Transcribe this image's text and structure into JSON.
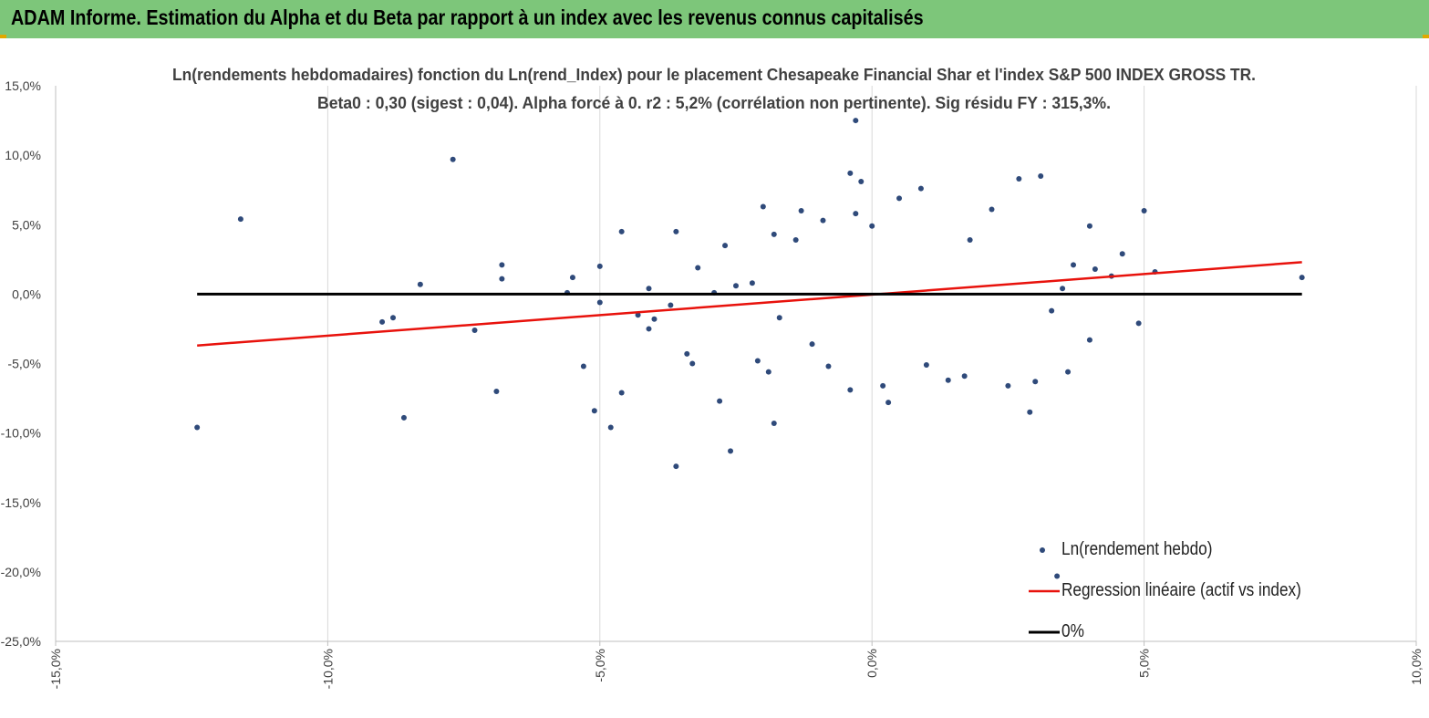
{
  "header": {
    "title": "ADAM Informe. Estimation du Alpha et du Beta par rapport à un index avec les revenus connus capitalisés"
  },
  "colors": {
    "header_bg": "#7dc67a",
    "points": "#2f4a7a",
    "regression": "#e8120c",
    "zero_line": "#000000",
    "grid": "#d9d9d9"
  },
  "chart_data": {
    "type": "scatter",
    "title": "Ln(rendements hebdomadaires) fonction du Ln(rend_Index) pour le placement Chesapeake Financial Shar et l'index S&P 500 INDEX GROSS TR.",
    "subtitle": "Beta0 : 0,30 (sigest : 0,04).  Alpha forcé à 0. r2 : 5,2% (corrélation non pertinente). Sig résidu FY : 315,3%.",
    "xlim": [
      -0.15,
      0.1
    ],
    "ylim": [
      -0.25,
      0.15
    ],
    "x_ticks": [
      -0.15,
      -0.1,
      -0.05,
      0.0,
      0.05,
      0.1
    ],
    "x_tick_labels": [
      "-15,0%",
      "-10,0%",
      "-5,0%",
      "0,0%",
      "5,0%",
      "10,0%"
    ],
    "y_ticks": [
      0.15,
      0.1,
      0.05,
      0.0,
      -0.05,
      -0.1,
      -0.15,
      -0.2,
      -0.25
    ],
    "y_tick_labels": [
      "15,0%",
      "10,0%",
      "5,0%",
      "0,0%",
      "-5,0%",
      "-10,0%",
      "-15,0%",
      "-20,0%",
      "-25,0%"
    ],
    "grid": "vertical",
    "legend_position": "bottom-right",
    "series": [
      {
        "name": "Ln(rendement hebdo)",
        "kind": "points",
        "points": [
          [
            -0.124,
            -0.096
          ],
          [
            -0.116,
            0.054
          ],
          [
            -0.077,
            0.097
          ],
          [
            -0.083,
            0.007
          ],
          [
            -0.086,
            -0.089
          ],
          [
            -0.09,
            -0.02
          ],
          [
            -0.088,
            -0.017
          ],
          [
            -0.073,
            -0.026
          ],
          [
            -0.069,
            -0.07
          ],
          [
            -0.068,
            0.021
          ],
          [
            -0.068,
            0.011
          ],
          [
            -0.055,
            0.012
          ],
          [
            -0.056,
            0.001
          ],
          [
            -0.053,
            -0.052
          ],
          [
            -0.051,
            -0.084
          ],
          [
            -0.05,
            -0.006
          ],
          [
            -0.05,
            0.02
          ],
          [
            -0.048,
            -0.096
          ],
          [
            -0.046,
            0.045
          ],
          [
            -0.046,
            -0.071
          ],
          [
            -0.043,
            -0.015
          ],
          [
            -0.041,
            0.004
          ],
          [
            -0.041,
            -0.025
          ],
          [
            -0.04,
            -0.018
          ],
          [
            -0.037,
            -0.008
          ],
          [
            -0.036,
            -0.124
          ],
          [
            -0.036,
            0.045
          ],
          [
            -0.034,
            -0.043
          ],
          [
            -0.033,
            -0.05
          ],
          [
            -0.032,
            0.019
          ],
          [
            -0.026,
            -0.113
          ],
          [
            -0.028,
            -0.077
          ],
          [
            -0.027,
            0.035
          ],
          [
            -0.022,
            0.008
          ],
          [
            -0.021,
            -0.048
          ],
          [
            -0.02,
            0.063
          ],
          [
            -0.018,
            -0.093
          ],
          [
            -0.019,
            -0.056
          ],
          [
            -0.018,
            0.043
          ],
          [
            -0.014,
            0.039
          ],
          [
            -0.013,
            0.06
          ],
          [
            -0.009,
            0.053
          ],
          [
            -0.004,
            0.087
          ],
          [
            -0.003,
            0.125
          ],
          [
            -0.002,
            0.081
          ],
          [
            -0.003,
            0.058
          ],
          [
            -0.004,
            -0.069
          ],
          [
            0.0,
            0.049
          ],
          [
            -0.008,
            -0.052
          ],
          [
            0.002,
            -0.066
          ],
          [
            0.003,
            -0.078
          ],
          [
            0.005,
            0.069
          ],
          [
            0.009,
            0.076
          ],
          [
            0.01,
            -0.051
          ],
          [
            0.014,
            -0.062
          ],
          [
            0.018,
            0.039
          ],
          [
            0.022,
            0.061
          ],
          [
            0.025,
            -0.066
          ],
          [
            0.027,
            0.083
          ],
          [
            0.029,
            -0.085
          ],
          [
            0.03,
            -0.063
          ],
          [
            0.031,
            0.085
          ],
          [
            0.034,
            -0.203
          ],
          [
            0.036,
            -0.056
          ],
          [
            0.04,
            -0.033
          ],
          [
            0.04,
            0.049
          ],
          [
            0.046,
            0.029
          ],
          [
            0.049,
            -0.021
          ],
          [
            0.05,
            0.06
          ],
          [
            0.052,
            0.016
          ],
          [
            0.079,
            0.012
          ],
          [
            0.037,
            0.021
          ],
          [
            0.041,
            0.018
          ],
          [
            0.044,
            0.013
          ],
          [
            0.035,
            0.004
          ],
          [
            0.033,
            -0.012
          ],
          [
            -0.029,
            0.001
          ],
          [
            -0.025,
            0.006
          ],
          [
            -0.017,
            -0.017
          ],
          [
            -0.011,
            -0.036
          ],
          [
            0.017,
            -0.059
          ]
        ]
      },
      {
        "name": "Regression linéaire (actif vs index)",
        "kind": "line",
        "points": [
          [
            -0.124,
            -0.037
          ],
          [
            0.079,
            0.023
          ]
        ]
      },
      {
        "name": "0%",
        "kind": "line",
        "points": [
          [
            -0.124,
            0.0
          ],
          [
            0.079,
            0.0
          ]
        ]
      }
    ]
  }
}
